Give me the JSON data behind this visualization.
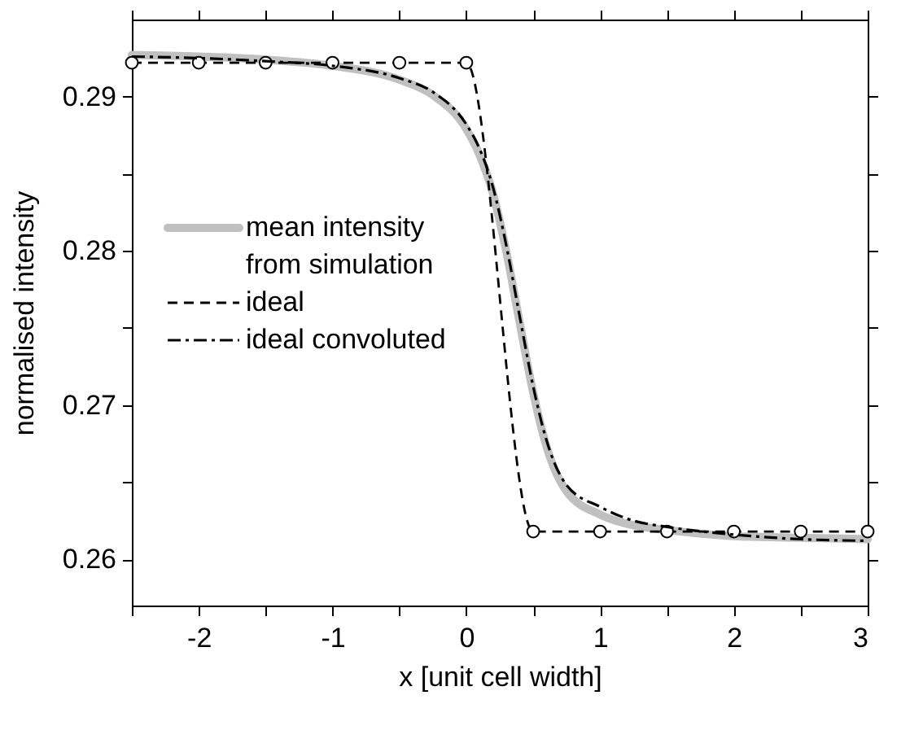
{
  "chart_data": {
    "type": "line",
    "xlabel": "x [unit cell width]",
    "ylabel": "normalised intensity",
    "xlim": [
      -2.5,
      3.0
    ],
    "ylim": [
      0.257,
      0.295
    ],
    "xticks": [
      {
        "value": -2.5,
        "label": null
      },
      -2,
      {
        "value": -1.5,
        "label": null
      },
      -1,
      {
        "value": -0.5,
        "label": null
      },
      0,
      {
        "value": 0.5,
        "label": null
      },
      1,
      {
        "value": 1.5,
        "label": null
      },
      2,
      {
        "value": 2.5,
        "label": null
      },
      3
    ],
    "yticks": [
      {
        "value": 0.26,
        "label": "0.26"
      },
      {
        "value": 0.265,
        "label": null
      },
      {
        "value": 0.27,
        "label": "0.27"
      },
      {
        "value": 0.275,
        "label": null
      },
      {
        "value": 0.28,
        "label": "0.28"
      },
      {
        "value": 0.285,
        "label": null
      },
      {
        "value": 0.29,
        "label": "0.29"
      }
    ],
    "grid": false,
    "legend": "left",
    "series": [
      {
        "name": "mean intensity from simulation",
        "color": "#c0c0c0",
        "line_style": "solid",
        "marker": "none",
        "x": [
          -2.5,
          -2,
          -1.5,
          -1,
          -0.5,
          -0.25,
          0,
          0.1,
          0.2,
          0.3,
          0.4,
          0.5,
          0.6,
          0.75,
          1.0,
          1.25,
          1.5,
          2,
          2.5,
          3
        ],
        "values": [
          0.2927,
          0.2926,
          0.2924,
          0.292,
          0.2911,
          0.2901,
          0.2879,
          0.2862,
          0.2837,
          0.2799,
          0.2753,
          0.2708,
          0.2673,
          0.2644,
          0.2629,
          0.2622,
          0.2619,
          0.2615,
          0.2614,
          0.2613
        ]
      },
      {
        "name": "ideal",
        "color": "#000000",
        "line_style": "dashed",
        "marker": "circle",
        "x": [
          -2.5,
          -2,
          -1.5,
          -1,
          -0.5,
          0,
          0.5,
          1,
          1.5,
          2,
          2.5,
          3
        ],
        "values": [
          0.2922,
          0.2922,
          0.2922,
          0.2922,
          0.2922,
          0.2922,
          0.2618,
          0.2618,
          0.2618,
          0.2618,
          0.2618,
          0.2618
        ]
      },
      {
        "name": "ideal convoluted",
        "color": "#000000",
        "line_style": "dashdot",
        "marker": "none",
        "x": [
          -2.5,
          -2,
          -1.5,
          -1,
          -0.5,
          -0.25,
          0,
          0.1,
          0.2,
          0.3,
          0.4,
          0.5,
          0.6,
          0.75,
          1.0,
          1.25,
          1.5,
          2,
          2.5,
          3
        ],
        "values": [
          0.2926,
          0.2925,
          0.2923,
          0.292,
          0.2912,
          0.2903,
          0.2882,
          0.2866,
          0.2841,
          0.2803,
          0.2757,
          0.2712,
          0.2677,
          0.2648,
          0.2634,
          0.2625,
          0.2621,
          0.2616,
          0.2613,
          0.2612
        ]
      }
    ]
  }
}
